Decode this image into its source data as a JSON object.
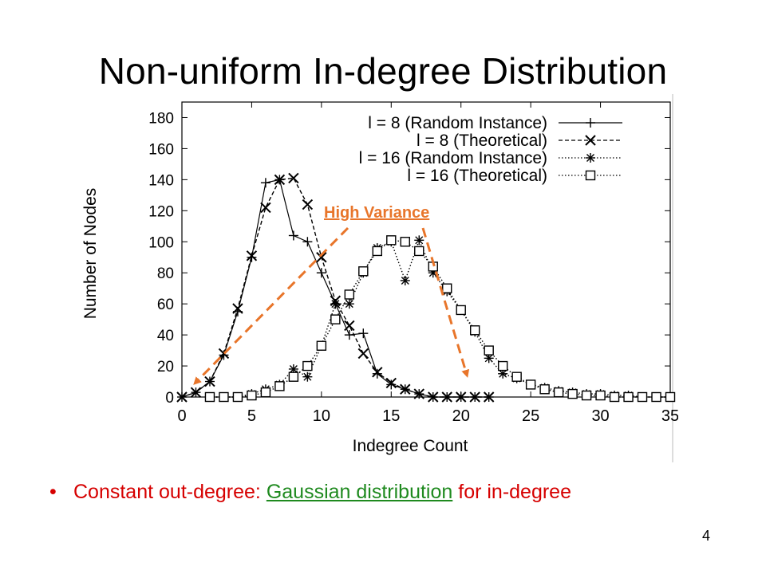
{
  "slide": {
    "title": "Non-uniform In-degree Distribution",
    "bullet_prefix": "Constant out-degree: ",
    "bullet_highlight": "Gaussian distribution",
    "bullet_suffix": " for in-degree",
    "page_number": "4",
    "annotation": "High Variance",
    "colors": {
      "bullet_text": "#d60000",
      "highlight": "#1f8a1f",
      "annotation": "#e8752a"
    }
  },
  "chart_data": {
    "type": "line",
    "xlabel": "Indegree Count",
    "ylabel": "Number of Nodes",
    "xlim": [
      0,
      35
    ],
    "ylim": [
      0,
      190
    ],
    "xticks": [
      0,
      5,
      10,
      15,
      20,
      25,
      30,
      35
    ],
    "yticks": [
      0,
      20,
      40,
      60,
      80,
      100,
      120,
      140,
      160,
      180
    ],
    "grid": false,
    "legend_position": "top-right",
    "series": [
      {
        "name": "l = 8 (Random Instance)",
        "marker": "plus",
        "line_style": "solid",
        "x": [
          0,
          1,
          2,
          3,
          4,
          5,
          6,
          7,
          8,
          9,
          10,
          11,
          12,
          13,
          14,
          15,
          16,
          17,
          18,
          19,
          20,
          21,
          22
        ],
        "y": [
          0,
          3,
          10,
          27,
          55,
          90,
          138,
          140,
          104,
          100,
          80,
          60,
          40,
          41,
          15,
          8,
          5,
          2,
          0,
          0,
          0,
          0,
          0
        ]
      },
      {
        "name": "l = 8 (Theoretical)",
        "marker": "x",
        "line_style": "dashed",
        "x": [
          0,
          1,
          2,
          3,
          4,
          5,
          6,
          7,
          8,
          9,
          10,
          11,
          12,
          13,
          14,
          15,
          16,
          17,
          18,
          19,
          20,
          21,
          22
        ],
        "y": [
          0,
          3,
          10,
          28,
          57,
          91,
          122,
          140,
          141,
          124,
          90,
          62,
          46,
          28,
          16,
          9,
          5,
          2,
          0,
          0,
          0,
          0,
          0
        ]
      },
      {
        "name": "l = 16 (Random Instance)",
        "marker": "asterisk",
        "line_style": "dotted",
        "x": [
          2,
          3,
          4,
          5,
          6,
          7,
          8,
          9,
          10,
          11,
          12,
          13,
          14,
          15,
          16,
          17,
          18,
          19,
          20,
          21,
          22,
          23,
          24,
          25,
          26,
          27,
          28,
          29,
          30,
          31,
          32,
          33,
          34,
          35
        ],
        "y": [
          0,
          0,
          0,
          2,
          5,
          8,
          18,
          13,
          33,
          60,
          60,
          80,
          96,
          100,
          75,
          101,
          80,
          68,
          56,
          42,
          25,
          15,
          12,
          8,
          6,
          4,
          3,
          2,
          2,
          1,
          1,
          0,
          0,
          0
        ]
      },
      {
        "name": "l = 16 (Theoretical)",
        "marker": "square",
        "line_style": "dotted",
        "x": [
          2,
          3,
          4,
          5,
          6,
          7,
          8,
          9,
          10,
          11,
          12,
          13,
          14,
          15,
          16,
          17,
          18,
          19,
          20,
          21,
          22,
          23,
          24,
          25,
          26,
          27,
          28,
          29,
          30,
          31,
          32,
          33,
          34,
          35
        ],
        "y": [
          0,
          0,
          0,
          1,
          3,
          7,
          13,
          20,
          33,
          50,
          66,
          81,
          94,
          101,
          100,
          94,
          84,
          70,
          56,
          43,
          30,
          20,
          13,
          8,
          5,
          3,
          2,
          1,
          1,
          0,
          0,
          0,
          0,
          0
        ]
      }
    ]
  }
}
